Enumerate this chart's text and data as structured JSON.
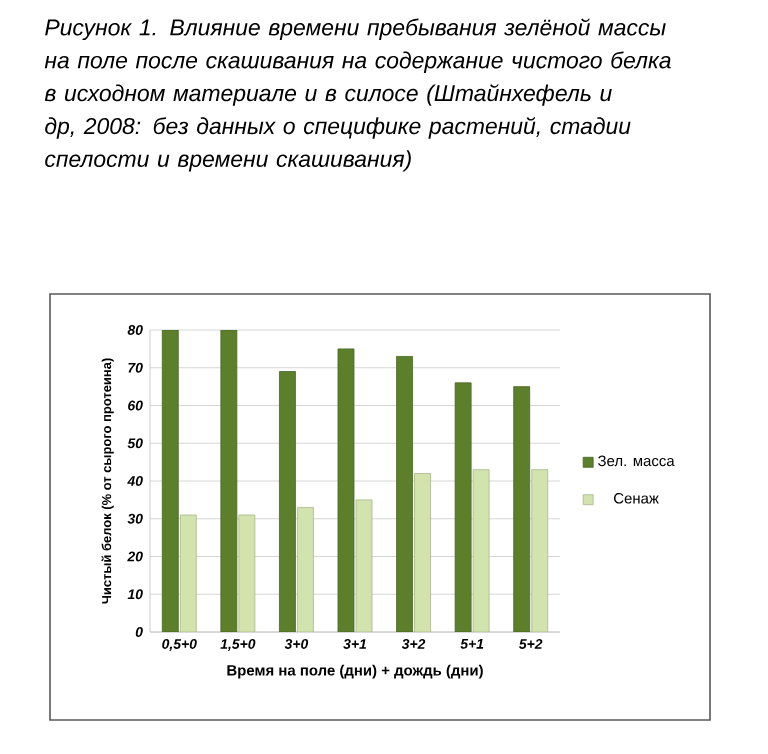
{
  "chart_data": {
    "type": "bar",
    "title": "Рисунок 1. Влияние времени пребывания зелёной массы на поле после скашивания на содержание чистого белка в исходном материале и в силосе (Штайнхефель и др, 2008: без данных о специфике растений, стадии спелости и времени скашивания)",
    "xlabel": "Время на поле (дни) + дождь (дни)",
    "ylabel": "Чистый белок (% от сырого протеина)",
    "categories": [
      "0,5+0",
      "1,5+0",
      "3+0",
      "3+1",
      "3+2",
      "5+1",
      "5+2"
    ],
    "series": [
      {
        "name": "Зел. масса",
        "color": "#5b7f2b",
        "values": [
          80,
          80,
          69,
          75,
          73,
          66,
          65
        ]
      },
      {
        "name": "Сенаж",
        "color": "#d3e3ae",
        "values": [
          31,
          31,
          33,
          35,
          42,
          43,
          43
        ]
      }
    ],
    "ylim": [
      0,
      80
    ],
    "yticks": [
      0,
      10,
      20,
      30,
      40,
      50,
      60,
      70,
      80
    ],
    "grid": "y",
    "legend": "right"
  }
}
